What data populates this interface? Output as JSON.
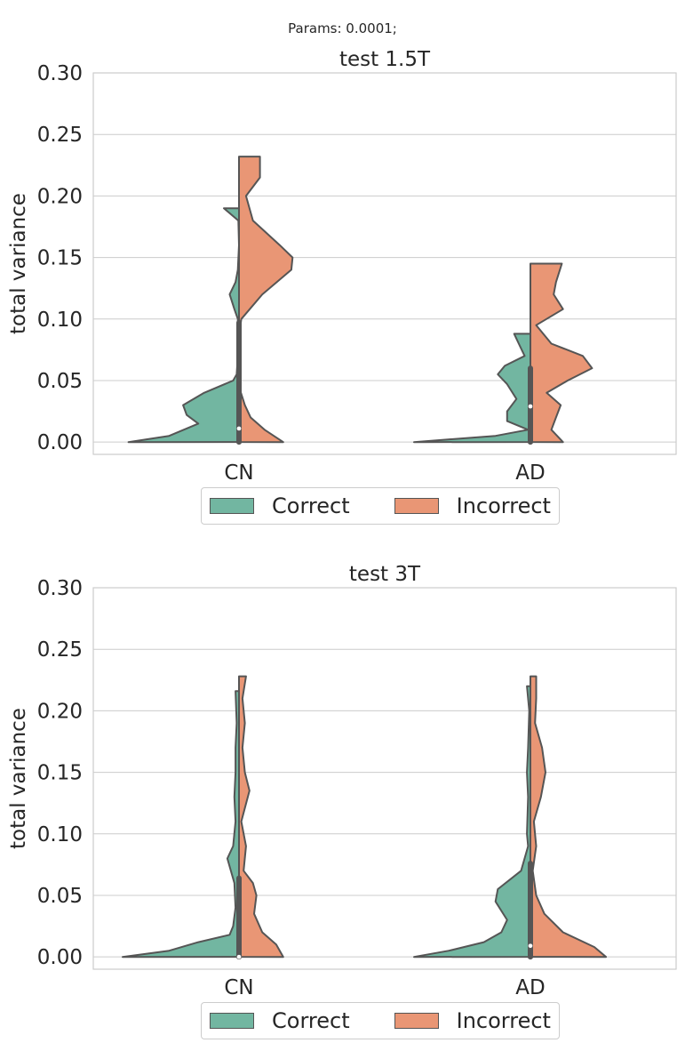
{
  "suptitle": "Params: 0.0001;",
  "colors": {
    "Correct": "#72b6a1",
    "Incorrect": "#e99675",
    "edge": "#555555",
    "grid": "#cccccc",
    "text": "#262626"
  },
  "legend_labels": [
    "Correct",
    "Incorrect"
  ],
  "chart_data": [
    {
      "type": "violin",
      "title": "test 1.5T",
      "ylabel": "total variance",
      "xlabel": "",
      "categories": [
        "CN",
        "AD"
      ],
      "ylim": [
        -0.01,
        0.3
      ],
      "yticks": [
        "0.00",
        "0.05",
        "0.10",
        "0.15",
        "0.20",
        "0.25",
        "0.30"
      ],
      "grid": true,
      "legend": "bottom-center",
      "split": true,
      "series": [
        {
          "name": "Correct",
          "violins": [
            {
              "category": "CN",
              "range": [
                0.0,
                0.19
              ],
              "density": [
                [
                  0.0,
                  0.95
                ],
                [
                  0.005,
                  0.6
                ],
                [
                  0.015,
                  0.35
                ],
                [
                  0.022,
                  0.45
                ],
                [
                  0.03,
                  0.48
                ],
                [
                  0.04,
                  0.3
                ],
                [
                  0.05,
                  0.05
                ],
                [
                  0.055,
                  0.02
                ],
                [
                  0.07,
                  0.01
                ],
                [
                  0.1,
                  0.01
                ],
                [
                  0.108,
                  0.04
                ],
                [
                  0.12,
                  0.08
                ],
                [
                  0.13,
                  0.03
                ],
                [
                  0.14,
                  0.01
                ],
                [
                  0.16,
                  0.0
                ],
                [
                  0.18,
                  0.005
                ],
                [
                  0.19,
                  0.13
                ]
              ]
            },
            {
              "category": "AD",
              "range": [
                0.0,
                0.088
              ],
              "density": [
                [
                  0.0,
                  1.0
                ],
                [
                  0.005,
                  0.3
                ],
                [
                  0.01,
                  0.02
                ],
                [
                  0.017,
                  0.2
                ],
                [
                  0.025,
                  0.2
                ],
                [
                  0.035,
                  0.12
                ],
                [
                  0.047,
                  0.2
                ],
                [
                  0.055,
                  0.28
                ],
                [
                  0.062,
                  0.22
                ],
                [
                  0.07,
                  0.05
                ],
                [
                  0.08,
                  0.1
                ],
                [
                  0.088,
                  0.14
                ]
              ]
            }
          ]
        },
        {
          "name": "Incorrect",
          "violins": [
            {
              "category": "CN",
              "range": [
                0.0,
                0.232
              ],
              "density": [
                [
                  0.0,
                  0.38
                ],
                [
                  0.01,
                  0.22
                ],
                [
                  0.02,
                  0.1
                ],
                [
                  0.03,
                  0.05
                ],
                [
                  0.045,
                  0.0
                ],
                [
                  0.06,
                  0.0
                ],
                [
                  0.09,
                  0.005
                ],
                [
                  0.1,
                  0.02
                ],
                [
                  0.12,
                  0.2
                ],
                [
                  0.14,
                  0.45
                ],
                [
                  0.15,
                  0.46
                ],
                [
                  0.16,
                  0.35
                ],
                [
                  0.18,
                  0.12
                ],
                [
                  0.2,
                  0.06
                ],
                [
                  0.215,
                  0.18
                ],
                [
                  0.232,
                  0.18
                ]
              ]
            },
            {
              "category": "AD",
              "range": [
                0.0,
                0.145
              ],
              "density": [
                [
                  0.0,
                  0.28
                ],
                [
                  0.01,
                  0.18
                ],
                [
                  0.02,
                  0.22
                ],
                [
                  0.03,
                  0.26
                ],
                [
                  0.04,
                  0.14
                ],
                [
                  0.05,
                  0.32
                ],
                [
                  0.06,
                  0.53
                ],
                [
                  0.07,
                  0.45
                ],
                [
                  0.08,
                  0.18
                ],
                [
                  0.095,
                  0.05
                ],
                [
                  0.108,
                  0.28
                ],
                [
                  0.12,
                  0.2
                ],
                [
                  0.13,
                  0.22
                ],
                [
                  0.145,
                  0.27
                ]
              ]
            }
          ]
        }
      ],
      "boxes": [
        {
          "category": "CN",
          "q1": 0.0,
          "median": 0.011,
          "q3": 0.097
        },
        {
          "category": "AD",
          "q1": 0.0,
          "median": 0.029,
          "q3": 0.06
        }
      ]
    },
    {
      "type": "violin",
      "title": "test 3T",
      "ylabel": "total variance",
      "xlabel": "",
      "categories": [
        "CN",
        "AD"
      ],
      "ylim": [
        -0.01,
        0.3
      ],
      "yticks": [
        "0.00",
        "0.05",
        "0.10",
        "0.15",
        "0.20",
        "0.25",
        "0.30"
      ],
      "grid": true,
      "legend": "bottom-center",
      "split": true,
      "series": [
        {
          "name": "Correct",
          "violins": [
            {
              "category": "CN",
              "range": [
                0.0,
                0.216
              ],
              "density": [
                [
                  0.0,
                  1.0
                ],
                [
                  0.005,
                  0.6
                ],
                [
                  0.012,
                  0.35
                ],
                [
                  0.018,
                  0.08
                ],
                [
                  0.025,
                  0.05
                ],
                [
                  0.04,
                  0.03
                ],
                [
                  0.06,
                  0.04
                ],
                [
                  0.08,
                  0.1
                ],
                [
                  0.09,
                  0.05
                ],
                [
                  0.11,
                  0.03
                ],
                [
                  0.13,
                  0.04
                ],
                [
                  0.15,
                  0.03
                ],
                [
                  0.17,
                  0.03
                ],
                [
                  0.19,
                  0.02
                ],
                [
                  0.216,
                  0.03
                ]
              ]
            },
            {
              "category": "AD",
              "range": [
                0.0,
                0.22
              ],
              "density": [
                [
                  0.0,
                  1.0
                ],
                [
                  0.005,
                  0.7
                ],
                [
                  0.012,
                  0.4
                ],
                [
                  0.02,
                  0.25
                ],
                [
                  0.03,
                  0.2
                ],
                [
                  0.045,
                  0.3
                ],
                [
                  0.055,
                  0.28
                ],
                [
                  0.07,
                  0.08
                ],
                [
                  0.09,
                  0.02
                ],
                [
                  0.1,
                  0.03
                ],
                [
                  0.13,
                  0.02
                ],
                [
                  0.15,
                  0.03
                ],
                [
                  0.17,
                  0.02
                ],
                [
                  0.2,
                  0.01
                ],
                [
                  0.22,
                  0.03
                ]
              ]
            }
          ]
        },
        {
          "name": "Incorrect",
          "violins": [
            {
              "category": "CN",
              "range": [
                0.0,
                0.228
              ],
              "density": [
                [
                  0.0,
                  0.38
                ],
                [
                  0.01,
                  0.32
                ],
                [
                  0.02,
                  0.2
                ],
                [
                  0.035,
                  0.13
                ],
                [
                  0.05,
                  0.15
                ],
                [
                  0.06,
                  0.12
                ],
                [
                  0.07,
                  0.04
                ],
                [
                  0.09,
                  0.06
                ],
                [
                  0.11,
                  0.02
                ],
                [
                  0.135,
                  0.09
                ],
                [
                  0.15,
                  0.05
                ],
                [
                  0.17,
                  0.03
                ],
                [
                  0.19,
                  0.05
                ],
                [
                  0.21,
                  0.03
                ],
                [
                  0.228,
                  0.06
                ]
              ]
            },
            {
              "category": "AD",
              "range": [
                0.0,
                0.228
              ],
              "density": [
                [
                  0.0,
                  0.65
                ],
                [
                  0.008,
                  0.55
                ],
                [
                  0.02,
                  0.28
                ],
                [
                  0.035,
                  0.12
                ],
                [
                  0.05,
                  0.05
                ],
                [
                  0.07,
                  0.02
                ],
                [
                  0.09,
                  0.05
                ],
                [
                  0.11,
                  0.03
                ],
                [
                  0.13,
                  0.09
                ],
                [
                  0.15,
                  0.13
                ],
                [
                  0.17,
                  0.1
                ],
                [
                  0.19,
                  0.04
                ],
                [
                  0.21,
                  0.05
                ],
                [
                  0.228,
                  0.05
                ]
              ]
            }
          ]
        }
      ],
      "boxes": [
        {
          "category": "CN",
          "q1": 0.0,
          "median": 0.0,
          "q3": 0.064
        },
        {
          "category": "AD",
          "q1": 0.0,
          "median": 0.009,
          "q3": 0.076
        }
      ]
    }
  ]
}
